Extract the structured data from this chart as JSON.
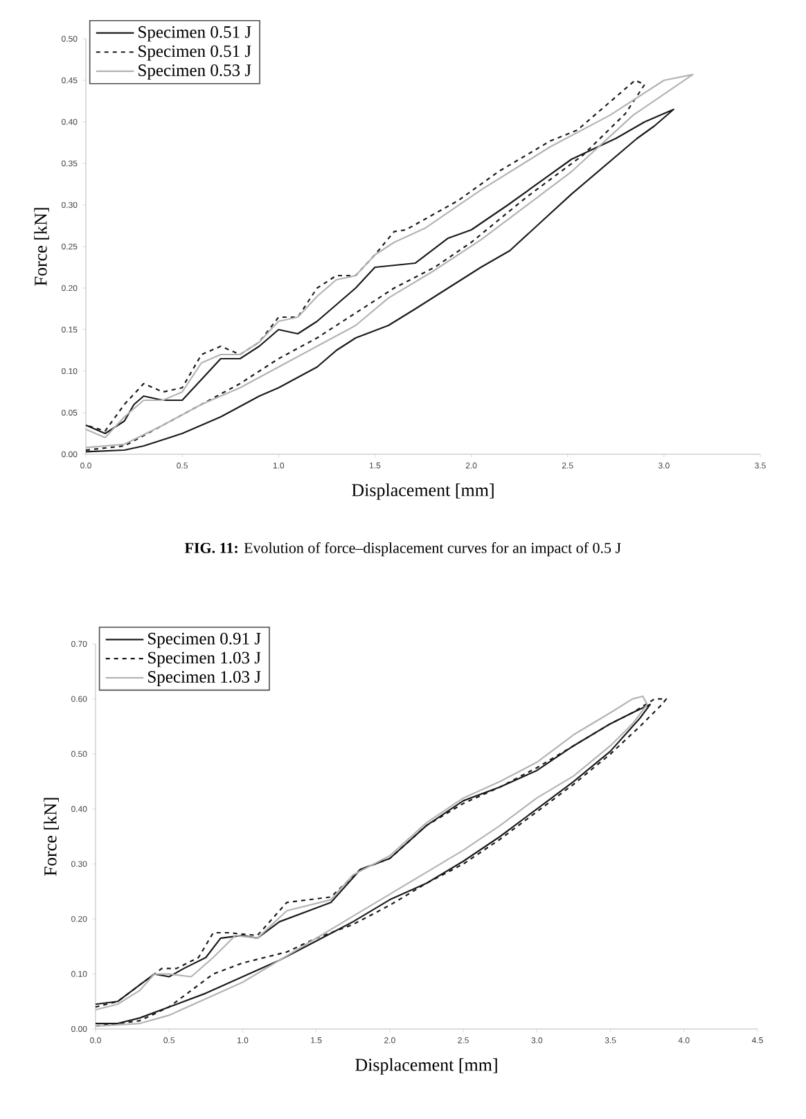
{
  "chart_data": [
    {
      "type": "line",
      "xlabel": "Displacement [mm]",
      "ylabel": "Force [kN]",
      "annotations": [
        "**FIG. 11:** Evolution of force–displacement curves for an impact of 0.5 J"
      ],
      "xlim": [
        0,
        3.5
      ],
      "ylim": [
        0,
        0.5
      ],
      "xticks": [
        {
          "value": 0,
          "label": "0.0"
        },
        0.5,
        {
          "value": 1,
          "label": "1.0"
        },
        1.5,
        {
          "value": 2,
          "label": "2.0"
        },
        2.5,
        {
          "value": 3,
          "label": "3.0"
        },
        3.5
      ],
      "yticks": [
        {
          "value": 0,
          "label": "0.00"
        },
        {
          "value": 0.05,
          "label": "0.05"
        },
        {
          "value": 0.1,
          "label": "0.10"
        },
        {
          "value": 0.15,
          "label": "0.15"
        },
        {
          "value": 0.2,
          "label": "0.20"
        },
        {
          "value": 0.25,
          "label": "0.25"
        },
        {
          "value": 0.3,
          "label": "0.30"
        },
        {
          "value": 0.35,
          "label": "0.35"
        },
        {
          "value": 0.4,
          "label": "0.40"
        },
        {
          "value": 0.45,
          "label": "0.45"
        },
        {
          "value": 0.5,
          "label": "0.50"
        }
      ],
      "legend": "top left",
      "series": [
        {
          "name": "Specimen 0.51 J",
          "color": "#1a1a1a",
          "line_style": "solid",
          "x": [
            0,
            0.2,
            0.3,
            0.5,
            0.7,
            0.9,
            1.0,
            1.2,
            1.3,
            1.4,
            1.57,
            1.71,
            2.05,
            2.2,
            2.52,
            2.86,
            2.95,
            3.05,
            2.9,
            2.75,
            2.52,
            2.19,
            2.0,
            1.88,
            1.71,
            1.5,
            1.4,
            1.3,
            1.2,
            1.1,
            1.0,
            0.9,
            0.8,
            0.7,
            0.6,
            0.5,
            0.4,
            0.3,
            0.25,
            0.2,
            0.1,
            0
          ],
          "values": [
            0.003,
            0.005,
            0.01,
            0.025,
            0.045,
            0.07,
            0.08,
            0.105,
            0.125,
            0.14,
            0.155,
            0.175,
            0.225,
            0.245,
            0.313,
            0.38,
            0.395,
            0.415,
            0.4,
            0.38,
            0.355,
            0.3,
            0.27,
            0.26,
            0.23,
            0.225,
            0.2,
            0.18,
            0.16,
            0.145,
            0.15,
            0.13,
            0.115,
            0.115,
            0.09,
            0.065,
            0.065,
            0.07,
            0.06,
            0.04,
            0.025,
            0.035
          ]
        },
        {
          "name": "Specimen 0.51 J",
          "color": "#1a1a1a",
          "line_style": "dashed",
          "x": [
            0,
            0.2,
            0.4,
            0.6,
            0.8,
            1.0,
            1.2,
            1.4,
            1.6,
            1.81,
            2.0,
            2.29,
            2.58,
            2.8,
            2.9,
            2.85,
            2.7,
            2.55,
            2.41,
            2.14,
            1.93,
            1.66,
            1.6,
            1.5,
            1.4,
            1.3,
            1.2,
            1.1,
            1.0,
            0.9,
            0.8,
            0.7,
            0.6,
            0.5,
            0.4,
            0.3,
            0.2,
            0.1,
            0
          ],
          "values": [
            0.005,
            0.01,
            0.035,
            0.06,
            0.085,
            0.115,
            0.14,
            0.17,
            0.2,
            0.225,
            0.255,
            0.31,
            0.36,
            0.41,
            0.445,
            0.45,
            0.42,
            0.39,
            0.377,
            0.34,
            0.305,
            0.27,
            0.268,
            0.24,
            0.215,
            0.215,
            0.2,
            0.165,
            0.165,
            0.135,
            0.12,
            0.13,
            0.12,
            0.08,
            0.075,
            0.085,
            0.06,
            0.028,
            0.035
          ]
        },
        {
          "name": "Specimen 0.53 J",
          "color": "#b3b3b3",
          "line_style": "solid",
          "x": [
            0,
            0.2,
            0.4,
            0.6,
            0.8,
            1.0,
            1.2,
            1.4,
            1.57,
            1.8,
            2.05,
            2.52,
            2.84,
            3.15,
            3.0,
            2.72,
            2.41,
            2.05,
            1.76,
            1.6,
            1.5,
            1.4,
            1.3,
            1.2,
            1.1,
            1.0,
            0.9,
            0.8,
            0.7,
            0.6,
            0.5,
            0.4,
            0.3,
            0.2,
            0.1,
            0
          ],
          "values": [
            0.008,
            0.012,
            0.035,
            0.06,
            0.08,
            0.105,
            0.13,
            0.155,
            0.188,
            0.22,
            0.258,
            0.34,
            0.408,
            0.457,
            0.45,
            0.408,
            0.37,
            0.318,
            0.272,
            0.255,
            0.24,
            0.215,
            0.21,
            0.19,
            0.165,
            0.16,
            0.135,
            0.12,
            0.12,
            0.11,
            0.075,
            0.065,
            0.065,
            0.045,
            0.02,
            0.03
          ]
        }
      ]
    },
    {
      "type": "line",
      "xlabel": "Displacement [mm]",
      "ylabel": "Force [kN]",
      "xlim": [
        0,
        4.5
      ],
      "ylim": [
        0,
        0.7
      ],
      "xticks": [
        {
          "value": 0,
          "label": "0.0"
        },
        0.5,
        {
          "value": 1,
          "label": "1.0"
        },
        1.5,
        {
          "value": 2,
          "label": "2.0"
        },
        2.5,
        {
          "value": 3,
          "label": "3.0"
        },
        3.5,
        {
          "value": 4,
          "label": "4.0"
        },
        4.5
      ],
      "yticks": [
        {
          "value": 0,
          "label": "0.00"
        },
        {
          "value": 0.1,
          "label": "0.10"
        },
        {
          "value": 0.2,
          "label": "0.20"
        },
        {
          "value": 0.3,
          "label": "0.30"
        },
        {
          "value": 0.4,
          "label": "0.40"
        },
        {
          "value": 0.5,
          "label": "0.50"
        },
        {
          "value": 0.6,
          "label": "0.60"
        },
        {
          "value": 0.7,
          "label": "0.70"
        }
      ],
      "legend": "top left",
      "series": [
        {
          "name": "Specimen 0.91 J",
          "color": "#1a1a1a",
          "line_style": "solid",
          "x": [
            0,
            0.15,
            0.3,
            0.5,
            0.75,
            1.0,
            1.25,
            1.5,
            1.75,
            2.0,
            2.25,
            2.5,
            2.75,
            3.0,
            3.25,
            3.5,
            3.7,
            3.77,
            3.65,
            3.5,
            3.25,
            3.0,
            2.75,
            2.5,
            2.25,
            2.0,
            1.8,
            1.6,
            1.5,
            1.25,
            1.1,
            1.0,
            0.85,
            0.75,
            0.6,
            0.5,
            0.4,
            0.3,
            0.15,
            0
          ],
          "values": [
            0.01,
            0.01,
            0.02,
            0.04,
            0.065,
            0.095,
            0.125,
            0.16,
            0.195,
            0.235,
            0.265,
            0.305,
            0.35,
            0.4,
            0.45,
            0.505,
            0.565,
            0.59,
            0.575,
            0.555,
            0.515,
            0.47,
            0.44,
            0.415,
            0.37,
            0.31,
            0.29,
            0.23,
            0.22,
            0.195,
            0.165,
            0.17,
            0.165,
            0.13,
            0.11,
            0.095,
            0.1,
            0.08,
            0.05,
            0.045
          ]
        },
        {
          "name": "Specimen 1.03 J",
          "color": "#1a1a1a",
          "line_style": "dashed",
          "x": [
            0,
            0.3,
            0.5,
            0.8,
            1.0,
            1.3,
            1.5,
            1.75,
            2.0,
            2.25,
            2.5,
            2.75,
            3.0,
            3.25,
            3.5,
            3.7,
            3.85,
            3.88,
            3.8,
            3.65,
            3.5,
            3.25,
            3.0,
            2.75,
            2.5,
            2.25,
            2.0,
            1.8,
            1.6,
            1.3,
            1.1,
            0.9,
            0.8,
            0.7,
            0.55,
            0.45,
            0.3,
            0.15,
            0
          ],
          "values": [
            0.005,
            0.015,
            0.04,
            0.1,
            0.12,
            0.14,
            0.165,
            0.19,
            0.225,
            0.265,
            0.3,
            0.345,
            0.395,
            0.445,
            0.5,
            0.55,
            0.59,
            0.6,
            0.6,
            0.575,
            0.555,
            0.515,
            0.475,
            0.44,
            0.41,
            0.37,
            0.31,
            0.29,
            0.24,
            0.23,
            0.17,
            0.175,
            0.175,
            0.13,
            0.11,
            0.11,
            0.08,
            0.05,
            0.04
          ]
        },
        {
          "name": "Specimen 1.03 J",
          "color": "#b3b3b3",
          "line_style": "solid",
          "x": [
            0,
            0.3,
            0.5,
            0.75,
            1.0,
            1.25,
            1.5,
            1.75,
            2.0,
            2.25,
            2.5,
            2.75,
            3.0,
            3.25,
            3.5,
            3.65,
            3.75,
            3.72,
            3.65,
            3.5,
            3.25,
            3.0,
            2.75,
            2.5,
            2.25,
            2.0,
            1.75,
            1.6,
            1.3,
            1.1,
            0.95,
            0.8,
            0.65,
            0.5,
            0.4,
            0.3,
            0.15,
            0
          ],
          "values": [
            0.005,
            0.01,
            0.025,
            0.055,
            0.085,
            0.125,
            0.165,
            0.205,
            0.245,
            0.285,
            0.325,
            0.37,
            0.42,
            0.46,
            0.515,
            0.555,
            0.59,
            0.605,
            0.6,
            0.575,
            0.535,
            0.485,
            0.45,
            0.42,
            0.375,
            0.315,
            0.28,
            0.235,
            0.215,
            0.165,
            0.17,
            0.13,
            0.095,
            0.1,
            0.1,
            0.07,
            0.045,
            0.035
          ]
        }
      ]
    }
  ]
}
